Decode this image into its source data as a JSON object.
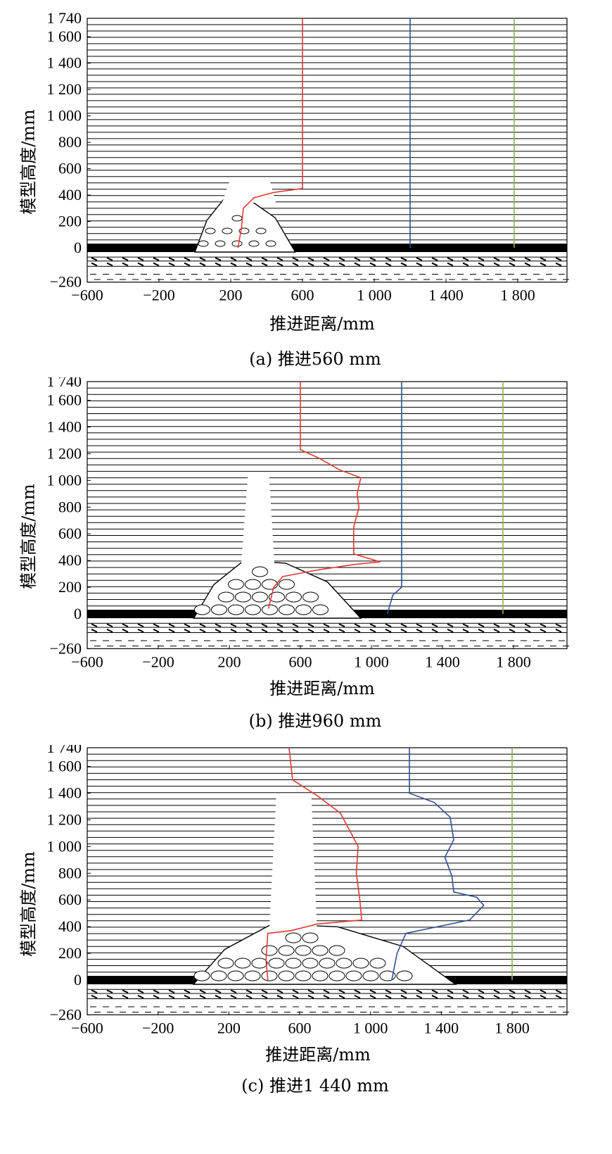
{
  "axes": {
    "ylabel": "模型高度/mm",
    "xlabel": "推进距离/mm",
    "yticks": [
      "1 740",
      "1 600",
      "1 400",
      "1 200",
      "1 000",
      "800",
      "600",
      "400",
      "200",
      "0",
      "−260"
    ],
    "xticks": [
      "−600",
      "−200",
      "200",
      "600",
      "1 000",
      "1 400",
      "1 800"
    ]
  },
  "colors": {
    "red_line": "#e03a32",
    "blue_line": "#2f4f9a",
    "green_line": "#8ab54a"
  },
  "panels": [
    {
      "caption": "(a)  推进560 mm"
    },
    {
      "caption": "(b)  推进960 mm"
    },
    {
      "caption": "(c)  推进1 440 mm"
    }
  ],
  "chart_data": {
    "type": "line",
    "x_unit": "mm",
    "y_unit": "mm",
    "xlim": [
      -600,
      2000
    ],
    "ylim": [
      -260,
      1740
    ],
    "panels": [
      {
        "advance_mm": 560,
        "series": [
          {
            "color": "red",
            "points": [
              [
                600,
                1740
              ],
              [
                600,
                450
              ],
              [
                440,
                420
              ],
              [
                330,
                380
              ],
              [
                270,
                300
              ],
              [
                260,
                150
              ],
              [
                240,
                0
              ]
            ]
          },
          {
            "color": "blue",
            "points": [
              [
                1200,
                1740
              ],
              [
                1200,
                0
              ]
            ]
          },
          {
            "color": "green",
            "points": [
              [
                1780,
                1740
              ],
              [
                1780,
                0
              ]
            ]
          }
        ]
      },
      {
        "advance_mm": 960,
        "series": [
          {
            "color": "red",
            "points": [
              [
                600,
                1740
              ],
              [
                600,
                1230
              ],
              [
                700,
                1170
              ],
              [
                820,
                1080
              ],
              [
                940,
                1020
              ],
              [
                920,
                900
              ],
              [
                930,
                800
              ],
              [
                900,
                650
              ],
              [
                900,
                450
              ],
              [
                1050,
                390
              ],
              [
                900,
                370
              ],
              [
                700,
                330
              ],
              [
                500,
                280
              ],
              [
                450,
                200
              ],
              [
                420,
                40
              ]
            ]
          },
          {
            "color": "blue",
            "points": [
              [
                1170,
                1740
              ],
              [
                1170,
                200
              ],
              [
                1120,
                140
              ],
              [
                1090,
                0
              ]
            ]
          },
          {
            "color": "green",
            "points": [
              [
                1740,
                1740
              ],
              [
                1740,
                0
              ]
            ]
          }
        ]
      },
      {
        "advance_mm": 1440,
        "series": [
          {
            "color": "red",
            "points": [
              [
                540,
                1740
              ],
              [
                560,
                1500
              ],
              [
                700,
                1380
              ],
              [
                830,
                1250
              ],
              [
                930,
                1000
              ],
              [
                920,
                800
              ],
              [
                940,
                600
              ],
              [
                950,
                450
              ],
              [
                700,
                420
              ],
              [
                550,
                370
              ],
              [
                420,
                350
              ],
              [
                410,
                150
              ],
              [
                420,
                0
              ]
            ]
          },
          {
            "color": "blue",
            "points": [
              [
                1220,
                1740
              ],
              [
                1220,
                1400
              ],
              [
                1360,
                1330
              ],
              [
                1450,
                1220
              ],
              [
                1470,
                1050
              ],
              [
                1420,
                920
              ],
              [
                1460,
                780
              ],
              [
                1470,
                660
              ],
              [
                1600,
                620
              ],
              [
                1640,
                560
              ],
              [
                1560,
                450
              ],
              [
                1380,
                400
              ],
              [
                1200,
                350
              ],
              [
                1150,
                200
              ],
              [
                1120,
                0
              ]
            ]
          },
          {
            "color": "green",
            "points": [
              [
                1800,
                1740
              ],
              [
                1800,
                0
              ]
            ]
          }
        ]
      }
    ]
  }
}
